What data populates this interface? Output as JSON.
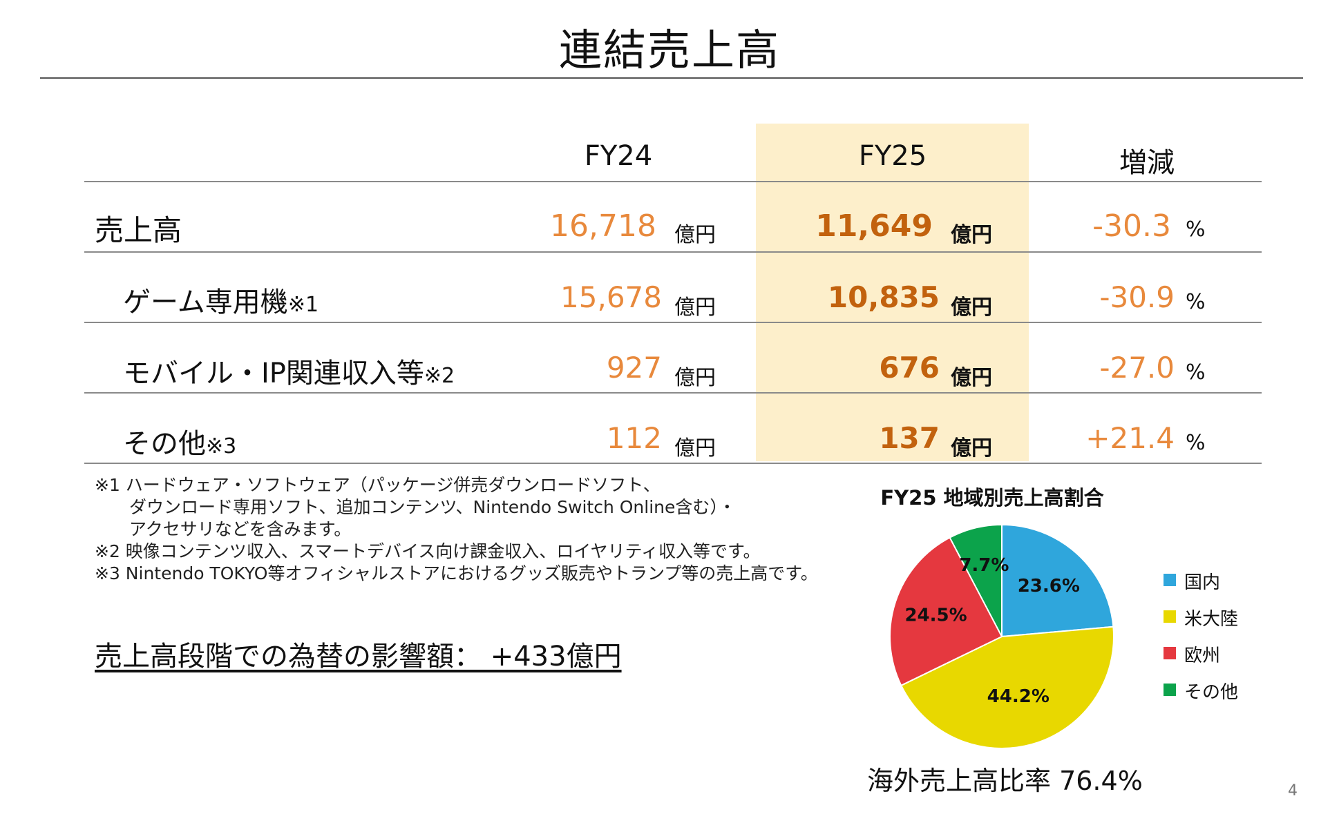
{
  "title": "連結売上高",
  "table": {
    "headers": {
      "fy24": "FY24",
      "fy25": "FY25",
      "change": "増減"
    },
    "unit": "億円",
    "pct_unit": "%",
    "rows": [
      {
        "label": "売上高",
        "note": "",
        "fy24": "16,718",
        "fy25": "11,649",
        "change": "-30.3"
      },
      {
        "label": "ゲーム専用機",
        "note": "※1",
        "fy24": "15,678",
        "fy25": "10,835",
        "change": "-30.9"
      },
      {
        "label": "モバイル・IP関連収入等",
        "note": "※2",
        "fy24": "927",
        "fy25": "676",
        "change": "-27.0"
      },
      {
        "label": "その他",
        "note": "※3",
        "fy24": "112",
        "fy25": "137",
        "change": "+21.4"
      }
    ]
  },
  "footnotes": [
    "※1 ハードウェア・ソフトウェア（パッケージ併売ダウンロードソフト、",
    "　　ダウンロード専用ソフト、追加コンテンツ、Nintendo Switch Online含む）・",
    "　　アクセサリなどを含みます。",
    "※2 映像コンテンツ収入、スマートデバイス向け課金収入、ロイヤリティ収入等です。",
    "※3 Nintendo TOKYO等オフィシャルストアにおけるグッズ販売やトランプ等の売上高です。"
  ],
  "fx_impact": "売上高段階での為替の影響額：  +433億円",
  "chart_data": {
    "type": "pie",
    "title": "FY25 地域別売上高割合",
    "slices": [
      {
        "name": "国内",
        "value": 23.6,
        "label": "23.6%",
        "color": "#2fa6dc"
      },
      {
        "name": "米大陸",
        "value": 44.2,
        "label": "44.2%",
        "color": "#e8d800"
      },
      {
        "name": "欧州",
        "value": 24.5,
        "label": "24.5%",
        "color": "#e5383f"
      },
      {
        "name": "その他",
        "value": 7.7,
        "label": "7.7%",
        "color": "#0ca34b"
      }
    ],
    "legend_position": "right",
    "annotation": "海外売上高比率 76.4%"
  },
  "page_number": "4"
}
